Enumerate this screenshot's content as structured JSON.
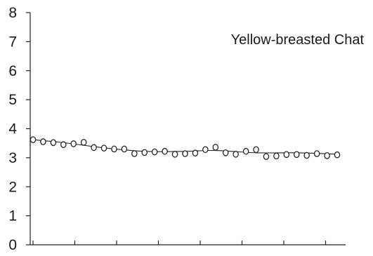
{
  "chart_data": {
    "type": "scatter",
    "title": "Yellow-breasted Chat",
    "xlabel": "",
    "ylabel": "",
    "ylim": [
      0,
      8
    ],
    "yticks": [
      "0",
      "1",
      "2",
      "3",
      "4",
      "5",
      "6",
      "7",
      "8"
    ],
    "x_tick_count": 8,
    "grid": false,
    "series": [
      {
        "marker": "open-circle",
        "x": [
          1,
          2,
          3,
          4,
          5,
          6,
          7,
          8,
          9,
          10,
          11,
          12,
          13,
          14,
          15,
          16,
          17,
          18,
          19,
          20,
          21,
          22,
          23,
          24,
          25,
          26,
          27,
          28,
          29,
          30,
          31
        ],
        "y": [
          3.62,
          3.55,
          3.52,
          3.45,
          3.48,
          3.53,
          3.35,
          3.33,
          3.3,
          3.3,
          3.14,
          3.18,
          3.2,
          3.22,
          3.12,
          3.14,
          3.16,
          3.28,
          3.36,
          3.17,
          3.12,
          3.22,
          3.28,
          3.04,
          3.06,
          3.11,
          3.11,
          3.08,
          3.14,
          3.07,
          3.1
        ]
      },
      {
        "style": "trend-line",
        "x": [
          1,
          4,
          8,
          12,
          16,
          19,
          23,
          27,
          31
        ],
        "y": [
          3.62,
          3.52,
          3.34,
          3.22,
          3.22,
          3.25,
          3.17,
          3.17,
          3.12
        ]
      }
    ]
  }
}
